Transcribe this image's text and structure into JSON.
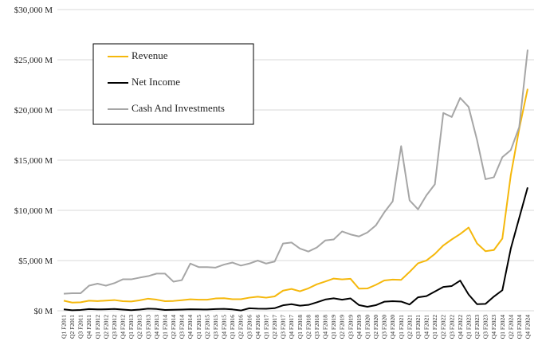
{
  "chart_data": {
    "type": "line",
    "categories": [
      "Q1 F2011",
      "Q2 F2011",
      "Q3 F2011",
      "Q4 F2011",
      "Q1 F2012",
      "Q2 F2012",
      "Q3 F2012",
      "Q4 F2012",
      "Q1 F2013",
      "Q2 F2013",
      "Q3 F2013",
      "Q4 F2013",
      "Q1 F2014",
      "Q2 F2014",
      "Q3 F2014",
      "Q4 F2014",
      "Q1 F2015",
      "Q2 F2015",
      "Q3 F2015",
      "Q4 F2015",
      "Q1 F2016",
      "Q2 F2016",
      "Q3 F2016",
      "Q4 F2016",
      "Q1 F2017",
      "Q2 F2017",
      "Q3 F2017",
      "Q4 F2017",
      "Q1 F2018",
      "Q2 F2018",
      "Q3 F2018",
      "Q4 F2018",
      "Q1 F2019",
      "Q2 F2019",
      "Q3 F2019",
      "Q4 F2019",
      "Q1 F2020",
      "Q2 F2020",
      "Q3 F2020",
      "Q4 F2020",
      "Q1 F2021",
      "Q2 F2021",
      "Q3 F2021",
      "Q4 F2021",
      "Q1 F2022",
      "Q2 F2022",
      "Q3 F2022",
      "Q4 F2022",
      "Q1 F2023",
      "Q2 F2023",
      "Q3 F2023",
      "Q4 F2023",
      "Q1 F2024",
      "Q2 F2024",
      "Q3 F2024",
      "Q4 F2024"
    ],
    "series": [
      {
        "name": "Revenue",
        "color": "#f5b80c",
        "values": [
          1002,
          811,
          844,
          1001,
          962,
          1017,
          1066,
          953,
          925,
          1044,
          1204,
          1107,
          954,
          977,
          1054,
          1144,
          1103,
          1103,
          1225,
          1251,
          1151,
          1153,
          1305,
          1401,
          1305,
          1428,
          2004,
          2173,
          1937,
          2230,
          2636,
          2911,
          3207,
          3123,
          3181,
          2205,
          2220,
          2579,
          3014,
          3105,
          3080,
          3866,
          4726,
          5003,
          5661,
          6507,
          7103,
          7643,
          8288,
          6704,
          5931,
          6051,
          7192,
          13507,
          18120,
          22103
        ]
      },
      {
        "name": "Net Income",
        "color": "#000000",
        "values": [
          137,
          50,
          84,
          171,
          135,
          151,
          178,
          116,
          60,
          119,
          209,
          174,
          78,
          96,
          119,
          147,
          137,
          128,
          173,
          193,
          134,
          26,
          246,
          207,
          196,
          253,
          542,
          655,
          507,
          583,
          838,
          1118,
          1244,
          1101,
          1230,
          567,
          394,
          552,
          899,
          950,
          917,
          622,
          1336,
          1457,
          1912,
          2374,
          2464,
          3003,
          1618,
          656,
          680,
          1414,
          2043,
          6188,
          9243,
          12285
        ]
      },
      {
        "name": "Cash And Investments",
        "color": "#a6a6a6",
        "values": [
          1700,
          1750,
          1750,
          2500,
          2700,
          2500,
          2750,
          3130,
          3130,
          3300,
          3450,
          3700,
          3700,
          2900,
          3050,
          4700,
          4350,
          4350,
          4300,
          4600,
          4800,
          4500,
          4700,
          5000,
          4700,
          4900,
          6700,
          6800,
          6200,
          5900,
          6300,
          7000,
          7100,
          7900,
          7600,
          7400,
          7800,
          8500,
          9800,
          10900,
          16400,
          11000,
          10100,
          11500,
          12600,
          19700,
          19300,
          21200,
          20300,
          17000,
          13100,
          13300,
          15300,
          16000,
          18300,
          26000
        ]
      }
    ],
    "ylim": [
      0,
      30000
    ],
    "yticks": [
      {
        "value": 0,
        "label": "$0 M"
      },
      {
        "value": 5000,
        "label": "$5,000 M"
      },
      {
        "value": 10000,
        "label": "$10,000 M"
      },
      {
        "value": 15000,
        "label": "$15,000 M"
      },
      {
        "value": 20000,
        "label": "$20,000 M"
      },
      {
        "value": 25000,
        "label": "$25,000 M"
      },
      {
        "value": 30000,
        "label": "$30,000 M"
      }
    ],
    "grid": true,
    "legend": "upper left"
  }
}
